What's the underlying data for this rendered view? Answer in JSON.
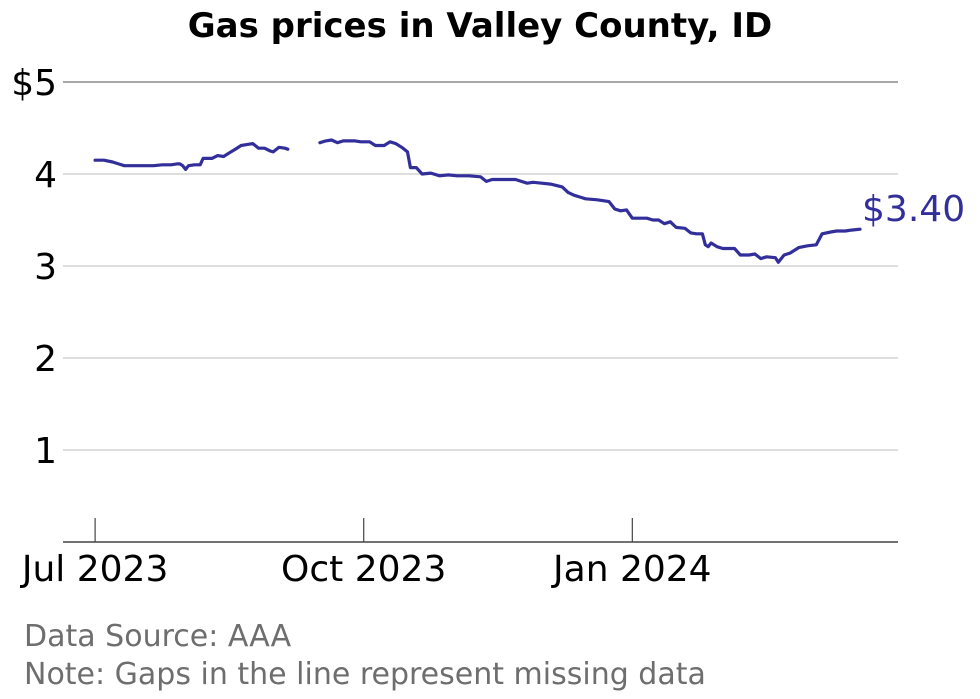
{
  "chart_data": {
    "type": "line",
    "title": "Gas prices in Valley County, ID",
    "xlabel": "",
    "ylabel": "",
    "ylim": [
      0,
      5
    ],
    "y_ticks": [
      {
        "value": 5,
        "label": "$5"
      },
      {
        "value": 4,
        "label": "4"
      },
      {
        "value": 3,
        "label": "3"
      },
      {
        "value": 2,
        "label": "2"
      },
      {
        "value": 1,
        "label": "1"
      }
    ],
    "x_ticks": [
      {
        "date": "2023-07-01",
        "label": "Jul 2023"
      },
      {
        "date": "2023-10-01",
        "label": "Oct 2023"
      },
      {
        "date": "2024-01-01",
        "label": "Jan 2024"
      }
    ],
    "xlim": [
      "2023-06-20",
      "2024-04-01"
    ],
    "grid": "horizontal",
    "end_label": "$3.40",
    "line_color": "#332f9a",
    "series": [
      {
        "segments": [
          [
            [
              "2023-07-01",
              4.15
            ],
            [
              "2023-07-04",
              4.15
            ],
            [
              "2023-07-07",
              4.13
            ],
            [
              "2023-07-09",
              4.11
            ],
            [
              "2023-07-11",
              4.09
            ],
            [
              "2023-07-14",
              4.09
            ],
            [
              "2023-07-18",
              4.09
            ],
            [
              "2023-07-21",
              4.09
            ],
            [
              "2023-07-24",
              4.1
            ],
            [
              "2023-07-27",
              4.1
            ],
            [
              "2023-07-29",
              4.11
            ],
            [
              "2023-07-30",
              4.11
            ],
            [
              "2023-07-31",
              4.09
            ],
            [
              "2023-08-01",
              4.05
            ],
            [
              "2023-08-02",
              4.09
            ],
            [
              "2023-08-04",
              4.1
            ],
            [
              "2023-08-06",
              4.1
            ],
            [
              "2023-08-07",
              4.17
            ],
            [
              "2023-08-10",
              4.17
            ],
            [
              "2023-08-12",
              4.2
            ],
            [
              "2023-08-14",
              4.19
            ],
            [
              "2023-08-16",
              4.23
            ],
            [
              "2023-08-18",
              4.27
            ],
            [
              "2023-08-20",
              4.31
            ],
            [
              "2023-08-22",
              4.32
            ],
            [
              "2023-08-24",
              4.33
            ],
            [
              "2023-08-26",
              4.28
            ],
            [
              "2023-08-28",
              4.28
            ],
            [
              "2023-08-30",
              4.25
            ],
            [
              "2023-08-31",
              4.24
            ],
            [
              "2023-09-02",
              4.29
            ],
            [
              "2023-09-04",
              4.28
            ],
            [
              "2023-09-05",
              4.27
            ]
          ],
          [
            [
              "2023-09-16",
              4.34
            ],
            [
              "2023-09-18",
              4.36
            ],
            [
              "2023-09-20",
              4.37
            ],
            [
              "2023-09-22",
              4.34
            ],
            [
              "2023-09-24",
              4.36
            ],
            [
              "2023-09-28",
              4.36
            ],
            [
              "2023-09-30",
              4.35
            ],
            [
              "2023-10-03",
              4.35
            ],
            [
              "2023-10-05",
              4.31
            ],
            [
              "2023-10-08",
              4.31
            ],
            [
              "2023-10-10",
              4.35
            ],
            [
              "2023-10-12",
              4.33
            ],
            [
              "2023-10-14",
              4.29
            ],
            [
              "2023-10-16",
              4.24
            ],
            [
              "2023-10-17",
              4.07
            ],
            [
              "2023-10-19",
              4.07
            ],
            [
              "2023-10-21",
              4.0
            ],
            [
              "2023-10-24",
              4.01
            ],
            [
              "2023-10-27",
              3.98
            ],
            [
              "2023-10-30",
              3.99
            ],
            [
              "2023-11-02",
              3.98
            ],
            [
              "2023-11-06",
              3.98
            ],
            [
              "2023-11-10",
              3.97
            ],
            [
              "2023-11-12",
              3.92
            ],
            [
              "2023-11-14",
              3.94
            ],
            [
              "2023-11-18",
              3.94
            ],
            [
              "2023-11-22",
              3.94
            ],
            [
              "2023-11-24",
              3.92
            ],
            [
              "2023-11-26",
              3.9
            ],
            [
              "2023-11-28",
              3.91
            ],
            [
              "2023-12-01",
              3.9
            ],
            [
              "2023-12-04",
              3.89
            ],
            [
              "2023-12-08",
              3.86
            ],
            [
              "2023-12-10",
              3.8
            ],
            [
              "2023-12-12",
              3.77
            ],
            [
              "2023-12-14",
              3.75
            ],
            [
              "2023-12-16",
              3.73
            ],
            [
              "2023-12-20",
              3.72
            ],
            [
              "2023-12-24",
              3.7
            ],
            [
              "2023-12-26",
              3.62
            ],
            [
              "2023-12-28",
              3.6
            ],
            [
              "2023-12-30",
              3.61
            ],
            [
              "2024-01-01",
              3.52
            ],
            [
              "2024-01-03",
              3.52
            ],
            [
              "2024-01-06",
              3.52
            ],
            [
              "2024-01-08",
              3.5
            ],
            [
              "2024-01-10",
              3.5
            ],
            [
              "2024-01-12",
              3.46
            ],
            [
              "2024-01-14",
              3.48
            ],
            [
              "2024-01-16",
              3.42
            ],
            [
              "2024-01-19",
              3.41
            ],
            [
              "2024-01-21",
              3.36
            ],
            [
              "2024-01-23",
              3.35
            ],
            [
              "2024-01-25",
              3.35
            ],
            [
              "2024-01-26",
              3.23
            ],
            [
              "2024-01-27",
              3.21
            ],
            [
              "2024-01-28",
              3.25
            ],
            [
              "2024-01-30",
              3.21
            ],
            [
              "2024-02-01",
              3.19
            ],
            [
              "2024-02-05",
              3.19
            ],
            [
              "2024-02-07",
              3.12
            ],
            [
              "2024-02-10",
              3.12
            ],
            [
              "2024-02-12",
              3.13
            ],
            [
              "2024-02-14",
              3.08
            ],
            [
              "2024-02-16",
              3.1
            ],
            [
              "2024-02-19",
              3.09
            ],
            [
              "2024-02-20",
              3.04
            ],
            [
              "2024-02-22",
              3.12
            ],
            [
              "2024-02-24",
              3.14
            ],
            [
              "2024-02-27",
              3.2
            ],
            [
              "2024-03-01",
              3.22
            ],
            [
              "2024-03-04",
              3.23
            ],
            [
              "2024-03-06",
              3.35
            ],
            [
              "2024-03-09",
              3.37
            ],
            [
              "2024-03-11",
              3.38
            ],
            [
              "2024-03-14",
              3.38
            ],
            [
              "2024-03-16",
              3.39
            ],
            [
              "2024-03-19",
              3.4
            ]
          ]
        ]
      }
    ],
    "notes": [
      "Data Source: AAA",
      "Note: Gaps in the line represent missing data"
    ]
  }
}
